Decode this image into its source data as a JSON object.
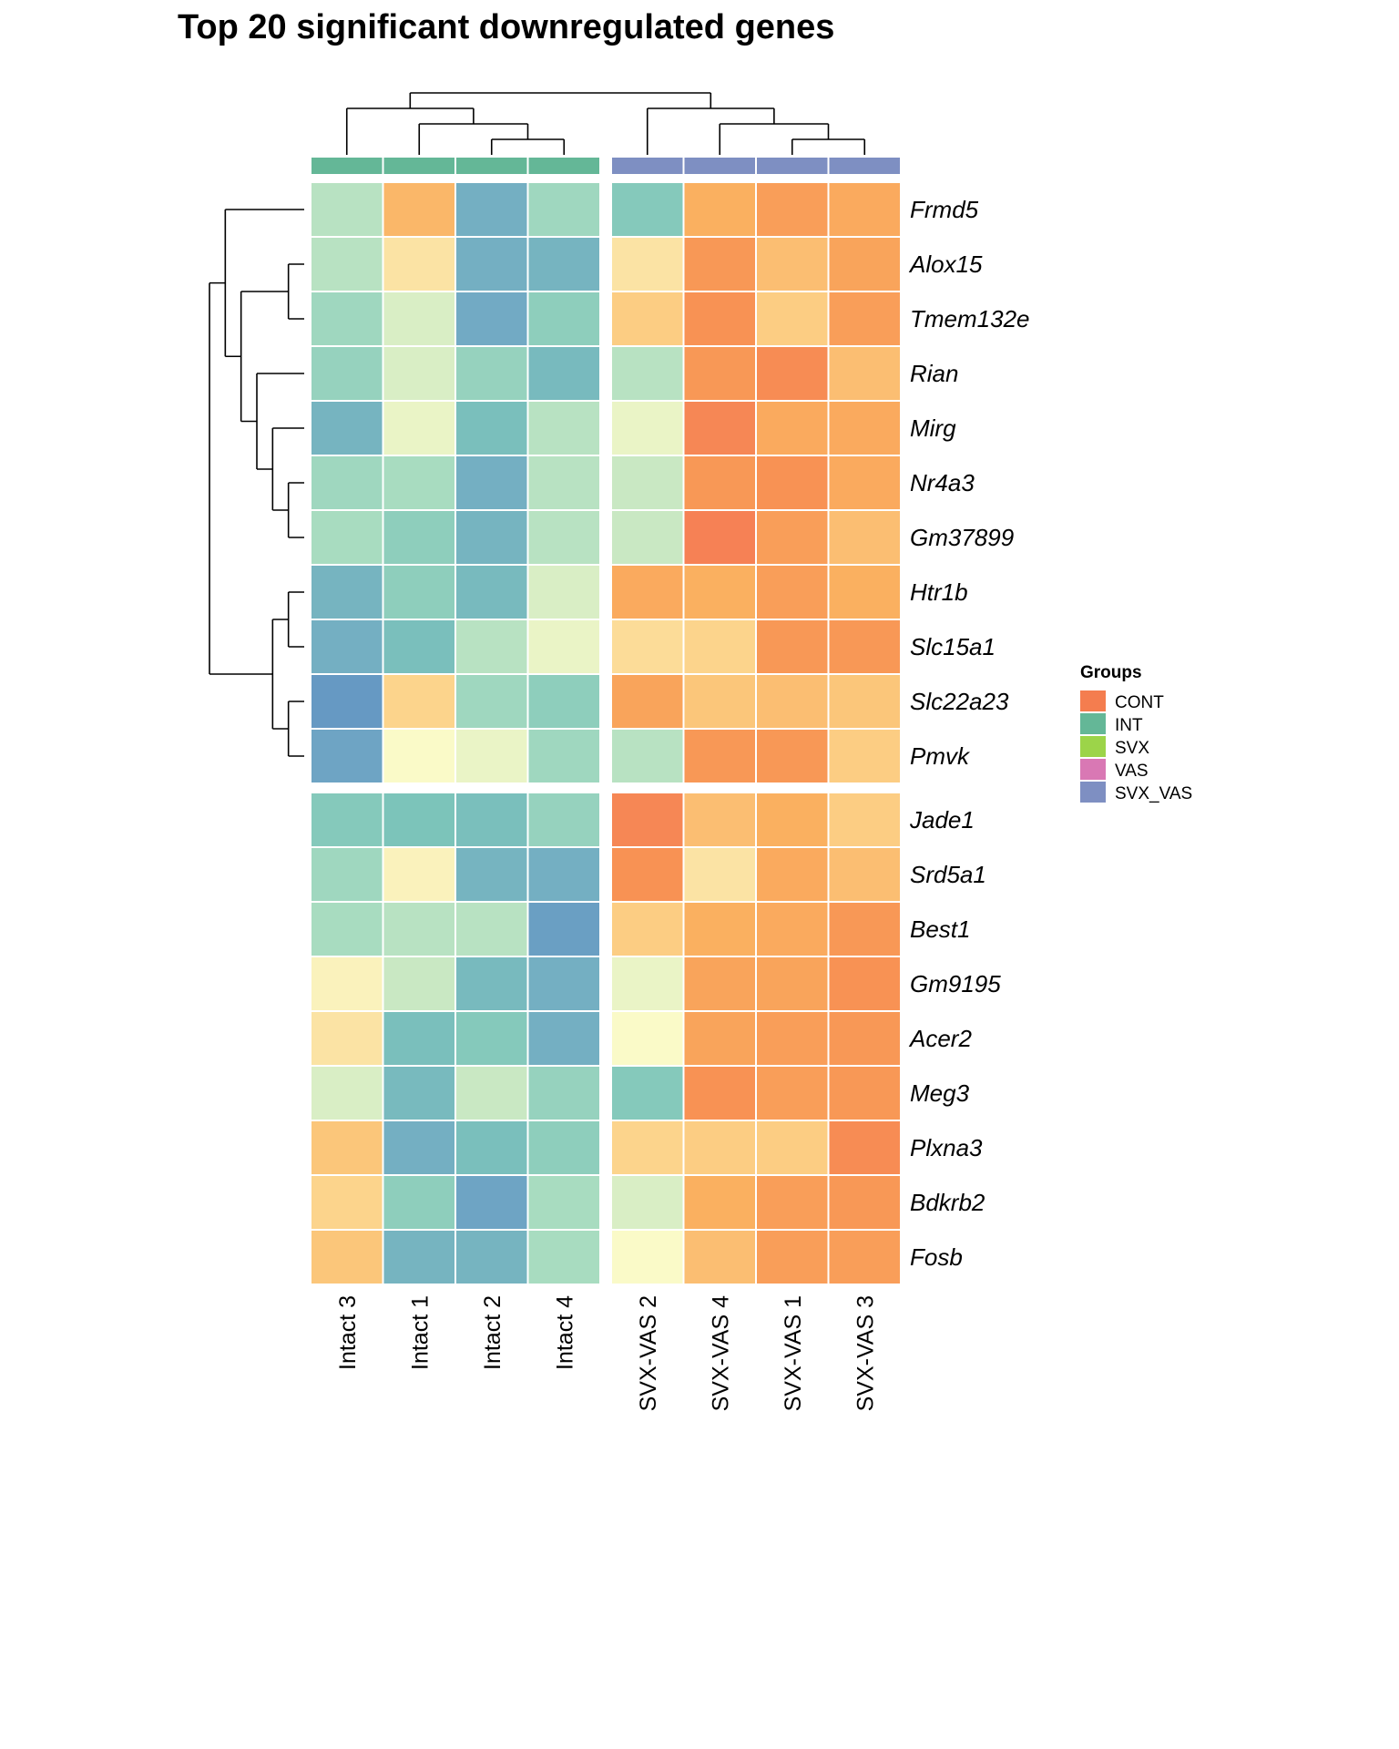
{
  "chart_data": {
    "type": "heatmap",
    "title": "Top 20 significant downregulated genes",
    "xlabel": "",
    "ylabel": "",
    "colormap": "diverging blue-green-yellow-orange (z-score, low to high)",
    "value_range": [
      -2,
      2
    ],
    "columns": [
      "Intact 3",
      "Intact 1",
      "Intact 2",
      "Intact 4",
      "SVX-VAS 2",
      "SVX-VAS 4",
      "SVX-VAS 1",
      "SVX-VAS 3"
    ],
    "column_groups": [
      "INT",
      "INT",
      "INT",
      "INT",
      "SVX_VAS",
      "SVX_VAS",
      "SVX_VAS",
      "SVX_VAS"
    ],
    "column_split_after": 4,
    "rows": [
      "Frmd5",
      "Alox15",
      "Tmem132e",
      "Rian",
      "Mirg",
      "Nr4a3",
      "Gm37899",
      "Htr1b",
      "Slc15a1",
      "Slc22a23",
      "Pmvk",
      "Jade1",
      "Srd5a1",
      "Best1",
      "Gm9195",
      "Acer2",
      "Meg3",
      "Plxna3",
      "Bdkrb2",
      "Fosb"
    ],
    "row_split_after": 11,
    "values": [
      [
        -0.4,
        0.9,
        -1.4,
        -0.6,
        -0.9,
        1.0,
        1.3,
        1.1
      ],
      [
        -0.4,
        0.3,
        -1.4,
        -1.3,
        0.3,
        1.4,
        0.8,
        1.2
      ],
      [
        -0.6,
        -0.2,
        -1.5,
        -0.8,
        0.6,
        1.5,
        0.6,
        1.3
      ],
      [
        -0.7,
        -0.2,
        -0.7,
        -1.2,
        -0.4,
        1.4,
        1.6,
        0.8
      ],
      [
        -1.3,
        -0.1,
        -1.1,
        -0.4,
        -0.1,
        1.7,
        1.1,
        1.1
      ],
      [
        -0.6,
        -0.5,
        -1.4,
        -0.4,
        -0.3,
        1.4,
        1.5,
        1.1
      ],
      [
        -0.5,
        -0.8,
        -1.3,
        -0.4,
        -0.3,
        1.8,
        1.3,
        0.8
      ],
      [
        -1.3,
        -0.8,
        -1.2,
        -0.2,
        1.1,
        1.0,
        1.3,
        1.0
      ],
      [
        -1.4,
        -1.1,
        -0.4,
        -0.1,
        0.4,
        0.5,
        1.4,
        1.4
      ],
      [
        -1.8,
        0.5,
        -0.6,
        -0.8,
        1.2,
        0.7,
        0.8,
        0.7
      ],
      [
        -1.6,
        0.0,
        -0.1,
        -0.6,
        -0.4,
        1.4,
        1.4,
        0.6
      ],
      [
        -0.9,
        -1.0,
        -1.1,
        -0.7,
        1.7,
        0.8,
        1.0,
        0.6
      ],
      [
        -0.6,
        0.1,
        -1.3,
        -1.4,
        1.5,
        0.3,
        1.1,
        0.8
      ],
      [
        -0.5,
        -0.4,
        -0.4,
        -1.7,
        0.6,
        1.0,
        1.1,
        1.4
      ],
      [
        0.1,
        -0.3,
        -1.2,
        -1.4,
        -0.1,
        1.2,
        1.2,
        1.5
      ],
      [
        0.3,
        -1.1,
        -0.9,
        -1.4,
        0.0,
        1.2,
        1.3,
        1.4
      ],
      [
        -0.2,
        -1.2,
        -0.3,
        -0.7,
        -0.9,
        1.5,
        1.3,
        1.4
      ],
      [
        0.7,
        -1.4,
        -1.1,
        -0.8,
        0.5,
        0.6,
        0.6,
        1.6
      ],
      [
        0.5,
        -0.8,
        -1.6,
        -0.5,
        -0.2,
        1.0,
        1.3,
        1.4
      ],
      [
        0.7,
        -1.3,
        -1.3,
        -0.5,
        0.0,
        0.8,
        1.3,
        1.3
      ]
    ],
    "legend": {
      "title": "Groups",
      "position": "right",
      "entries": [
        {
          "label": "CONT",
          "color": "#F47D4F"
        },
        {
          "label": "INT",
          "color": "#64B797"
        },
        {
          "label": "SVX",
          "color": "#9CD449"
        },
        {
          "label": "VAS",
          "color": "#D978B4"
        },
        {
          "label": "SVX_VAS",
          "color": "#7E8FC2"
        }
      ]
    },
    "column_dendrogram": "((Intact 3,(Intact 1,(Intact 2,Intact 4))),(SVX-VAS 2,(SVX-VAS 4,(SVX-VAS 1,SVX-VAS 3))))",
    "row_dendrogram": "((Frmd5,((Alox15,Tmem132e),(Rian,(Mirg,(Nr4a3,Gm37899))))),((Htr1b,Slc15a1),(Slc22a23,Pmvk))),((Jade1,Srd5a1),((Best1,(Gm9195,Acer2)),(Meg3,(Plxna3,(Bdkrb2,Fosb)))))"
  }
}
